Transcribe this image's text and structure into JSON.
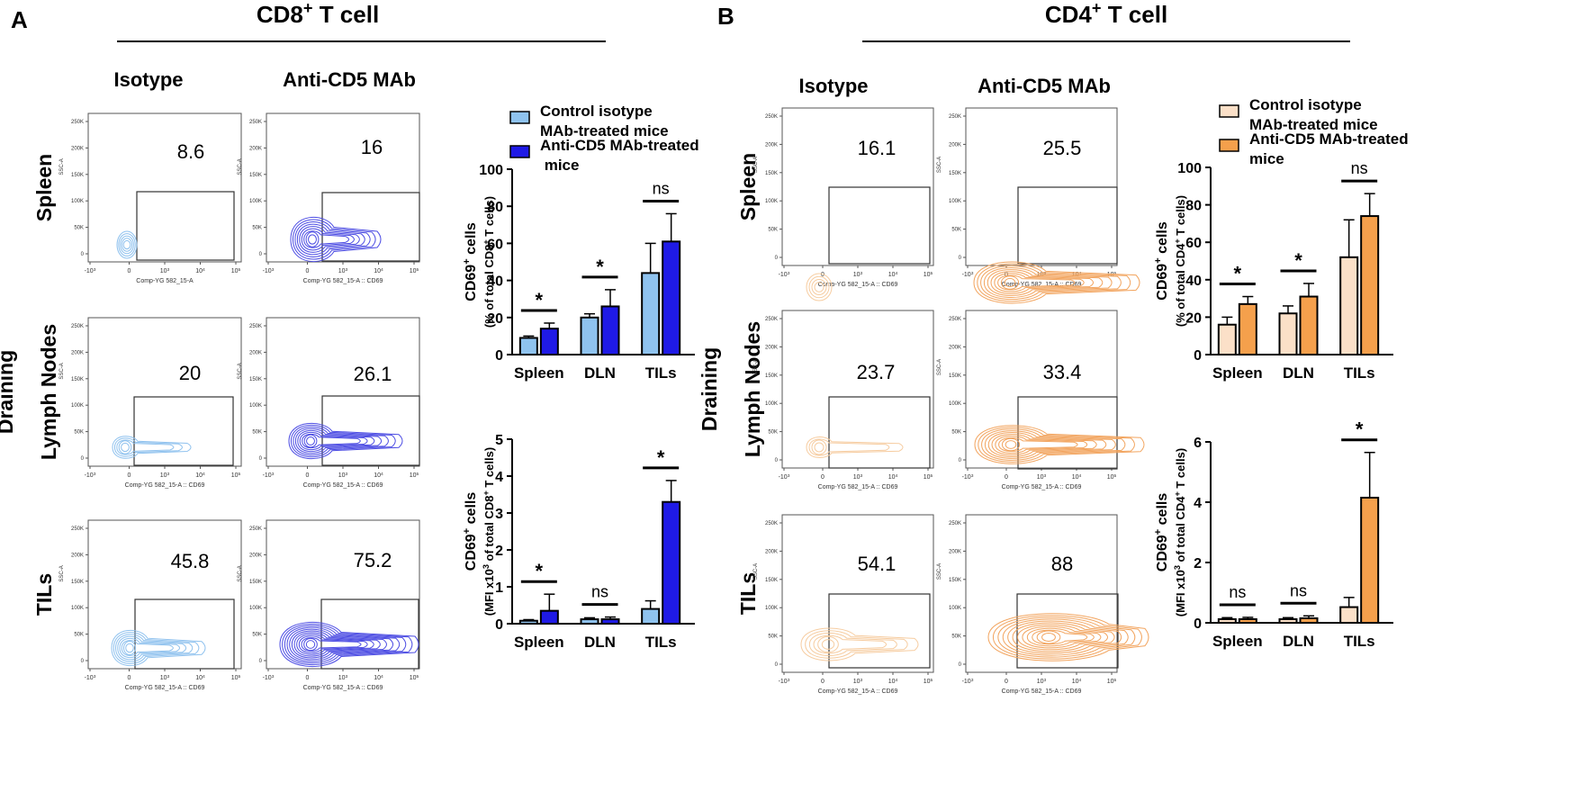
{
  "panels": [
    {
      "letter": "A",
      "title": "CD8⁺ T cell",
      "col_labels": [
        "Isotype",
        "Anti-CD5 MAb"
      ],
      "row_labels": [
        [
          "Spleen"
        ],
        [
          "Draining",
          "Lymph Nodes"
        ],
        [
          "TILs"
        ]
      ],
      "flow": {
        "ylabel": "SSC-A",
        "xlabel_iso": "Comp-YG 582_15-A",
        "xlabel_cd69": "Comp-YG 582_15-A :: CD69",
        "yticks": [
          "250K",
          "200K",
          "150K",
          "100K",
          "50K",
          "0"
        ],
        "xticks": [
          "-10³",
          "0",
          "10³",
          "10⁴",
          "10⁵"
        ],
        "values": [
          [
            "8.6",
            "16"
          ],
          [
            "20",
            "26.1"
          ],
          [
            "45.8",
            "75.2"
          ]
        ]
      },
      "legend": [
        "Control isotype MAb-treated mice",
        "Anti-CD5 MAb-treated mice"
      ],
      "colors": {
        "control": "#8fc3ef",
        "anti": "#1f1ae6",
        "contour_iso": "#8ec1ee",
        "contour_anti": "#4c4ce3"
      }
    },
    {
      "letter": "B",
      "title": "CD4⁺ T cell",
      "col_labels": [
        "Isotype",
        "Anti-CD5 MAb"
      ],
      "row_labels": [
        [
          "Spleen"
        ],
        [
          "Draining",
          "Lymph Nodes"
        ],
        [
          "TILs"
        ]
      ],
      "flow": {
        "ylabel": "SSC-A",
        "xlabel_iso": "Comp-YG 582_15-A :: CD69",
        "xlabel_cd69": "Comp-YG 582_15-A :: CD69",
        "yticks": [
          "250K",
          "200K",
          "150K",
          "100K",
          "50K",
          "0"
        ],
        "xticks": [
          "-10³",
          "0",
          "10³",
          "10⁴",
          "10⁵"
        ],
        "values": [
          [
            "16.1",
            "25.5"
          ],
          [
            "23.7",
            "33.4"
          ],
          [
            "54.1",
            "88"
          ]
        ]
      },
      "legend": [
        "Control isotype MAb-treated mice",
        "Anti-CD5 MAb-treated mice"
      ],
      "colors": {
        "control": "#fbe0c8",
        "anti": "#f5a04c",
        "contour_iso": "#f6cca0",
        "contour_anti": "#f2a45e"
      }
    }
  ],
  "chart_data": [
    {
      "panel": "A",
      "type": "bar",
      "categories": [
        "Spleen",
        "DLN",
        "TILs"
      ],
      "series": [
        {
          "name": "Control isotype MAb-treated mice",
          "values": [
            9,
            20,
            44
          ],
          "errors": [
            1,
            2,
            16
          ]
        },
        {
          "name": "Anti-CD5 MAb-treated mice",
          "values": [
            14,
            26,
            61
          ],
          "errors": [
            3,
            9,
            15
          ]
        }
      ],
      "significance": [
        "*",
        "*",
        "ns"
      ],
      "ylabel": [
        "CD69⁺ cells",
        "(% of total CD8⁺ T cells)"
      ],
      "ylim": [
        0,
        100
      ],
      "yticks": [
        "0",
        "20",
        "40",
        "60",
        "80",
        "100"
      ]
    },
    {
      "panel": "A",
      "type": "bar",
      "categories": [
        "Spleen",
        "DLN",
        "TILs"
      ],
      "series": [
        {
          "name": "Control isotype MAb-treated mice",
          "values": [
            0.08,
            0.12,
            0.4
          ],
          "errors": [
            0.03,
            0.04,
            0.22
          ]
        },
        {
          "name": "Anti-CD5 MAb-treated mice",
          "values": [
            0.35,
            0.12,
            3.3
          ],
          "errors": [
            0.45,
            0.06,
            0.58
          ]
        }
      ],
      "significance": [
        "*",
        "ns",
        "*"
      ],
      "ylabel": [
        "CD69⁺ cells",
        "(MFI x10³ of total CD8⁺ T cells)"
      ],
      "ylim": [
        0,
        5
      ],
      "yticks": [
        "0",
        "1",
        "2",
        "3",
        "4",
        "5"
      ]
    },
    {
      "panel": "B",
      "type": "bar",
      "categories": [
        "Spleen",
        "DLN",
        "TILs"
      ],
      "series": [
        {
          "name": "Control isotype MAb-treated mice",
          "values": [
            16,
            22,
            52
          ],
          "errors": [
            4,
            4,
            20
          ]
        },
        {
          "name": "Anti-CD5 MAb-treated mice",
          "values": [
            27,
            31,
            74
          ],
          "errors": [
            4,
            7,
            12
          ]
        }
      ],
      "significance": [
        "*",
        "*",
        "ns"
      ],
      "ylabel": [
        "CD69⁺ cells",
        "(% of total CD4⁺ T cells)"
      ],
      "ylim": [
        0,
        100
      ],
      "yticks": [
        "0",
        "20",
        "40",
        "60",
        "80",
        "100"
      ]
    },
    {
      "panel": "B",
      "type": "bar",
      "categories": [
        "Spleen",
        "DLN",
        "TILs"
      ],
      "series": [
        {
          "name": "Control isotype MAb-treated mice",
          "values": [
            0.12,
            0.12,
            0.52
          ],
          "errors": [
            0.05,
            0.05,
            0.32
          ]
        },
        {
          "name": "Anti-CD5 MAb-treated mice",
          "values": [
            0.12,
            0.15,
            4.15
          ],
          "errors": [
            0.06,
            0.08,
            1.5
          ]
        }
      ],
      "significance": [
        "ns",
        "ns",
        "*"
      ],
      "ylabel": [
        "CD69⁺ cells",
        "(MFI x10³ of total CD4⁺ T cells)"
      ],
      "ylim": [
        0,
        6
      ],
      "yticks": [
        "0",
        "2",
        "4",
        "6"
      ]
    }
  ]
}
